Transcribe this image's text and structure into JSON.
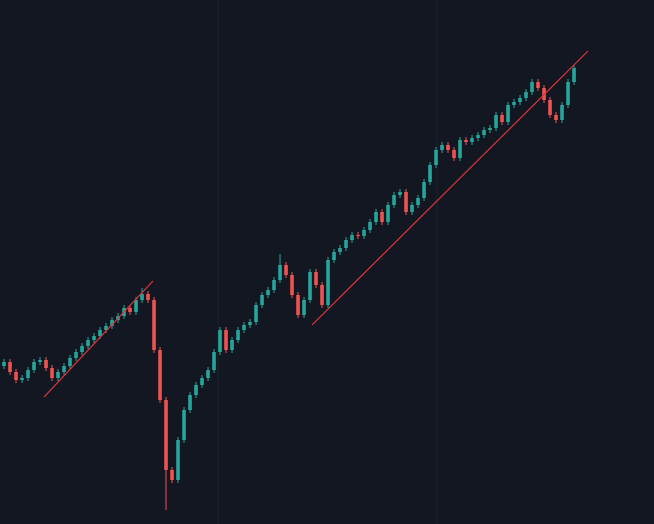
{
  "chart_data": {
    "type": "candlestick",
    "up_color": "#26a69a",
    "down_color": "#ef5350",
    "trendline_color": "#e0343c",
    "xlim": [
      -0.67,
      108.33
    ],
    "ylim": [
      0,
      524
    ],
    "x": [
      0,
      1,
      2,
      3,
      4,
      5,
      6,
      7,
      8,
      9,
      10,
      11,
      12,
      13,
      14,
      15,
      16,
      17,
      18,
      19,
      20,
      21,
      22,
      23,
      24,
      25,
      26,
      27,
      28,
      29,
      30,
      31,
      32,
      33,
      34,
      35,
      36,
      37,
      38,
      39,
      40,
      41,
      42,
      43,
      44,
      45,
      46,
      47,
      48,
      49,
      50,
      51,
      52,
      53,
      54,
      55,
      56,
      57,
      58,
      59,
      60,
      61,
      62,
      63,
      64,
      65,
      66,
      67,
      68,
      69,
      70,
      71,
      72,
      73,
      74,
      75,
      76,
      77,
      78,
      79,
      80,
      81,
      82,
      83,
      84,
      85,
      86,
      87,
      88,
      89,
      90,
      91,
      92,
      93,
      94,
      95
    ],
    "open": [
      158,
      162,
      152,
      144,
      146,
      154,
      162,
      164,
      156,
      146,
      152,
      158,
      166,
      172,
      178,
      184,
      188,
      194,
      198,
      204,
      208,
      216,
      212,
      224,
      230,
      224,
      174,
      124,
      54,
      44,
      84,
      114,
      129,
      139,
      146,
      154,
      172,
      194,
      174,
      184,
      194,
      199,
      202,
      219,
      229,
      234,
      244,
      259,
      249,
      229,
      209,
      224,
      252,
      239,
      219,
      264,
      272,
      276,
      284,
      289,
      288,
      294,
      302,
      312,
      302,
      319,
      329,
      332,
      312,
      319,
      326,
      342,
      359,
      374,
      379,
      374,
      366,
      384,
      382,
      386,
      389,
      394,
      396,
      409,
      402,
      419,
      422,
      426,
      432,
      442,
      436,
      424,
      409,
      404,
      419,
      442
    ],
    "high": [
      165,
      165,
      155,
      149,
      157,
      165,
      167,
      167,
      159,
      155,
      161,
      169,
      175,
      181,
      187,
      191,
      197,
      201,
      207,
      211,
      219,
      219,
      227,
      236,
      233,
      227,
      177,
      127,
      57,
      87,
      117,
      132,
      142,
      149,
      157,
      175,
      197,
      197,
      187,
      197,
      202,
      205,
      222,
      232,
      237,
      247,
      270,
      262,
      252,
      232,
      227,
      255,
      255,
      242,
      267,
      275,
      279,
      287,
      292,
      292,
      297,
      305,
      315,
      315,
      322,
      332,
      335,
      335,
      322,
      329,
      345,
      362,
      377,
      382,
      382,
      377,
      387,
      387,
      389,
      392,
      397,
      399,
      412,
      412,
      422,
      425,
      429,
      435,
      445,
      445,
      439,
      427,
      412,
      422,
      445,
      459
    ],
    "low": [
      155,
      149,
      141,
      141,
      143,
      151,
      159,
      153,
      143,
      143,
      149,
      155,
      163,
      169,
      175,
      181,
      185,
      191,
      195,
      201,
      205,
      209,
      209,
      221,
      221,
      171,
      121,
      14,
      41,
      41,
      81,
      111,
      126,
      136,
      143,
      151,
      169,
      171,
      171,
      181,
      191,
      196,
      199,
      216,
      226,
      231,
      241,
      246,
      226,
      206,
      206,
      221,
      236,
      216,
      216,
      261,
      269,
      273,
      281,
      285,
      285,
      291,
      299,
      299,
      299,
      316,
      326,
      309,
      309,
      316,
      323,
      339,
      356,
      371,
      371,
      363,
      363,
      379,
      379,
      383,
      386,
      391,
      393,
      399,
      399,
      416,
      419,
      423,
      429,
      433,
      421,
      406,
      401,
      401,
      416,
      439
    ],
    "close": [
      162,
      152,
      144,
      146,
      154,
      162,
      164,
      156,
      146,
      152,
      158,
      166,
      172,
      178,
      184,
      188,
      194,
      198,
      204,
      208,
      216,
      212,
      224,
      230,
      224,
      174,
      124,
      54,
      44,
      84,
      114,
      129,
      139,
      146,
      154,
      172,
      194,
      174,
      184,
      194,
      199,
      202,
      219,
      229,
      234,
      244,
      259,
      249,
      229,
      209,
      224,
      252,
      239,
      219,
      264,
      272,
      276,
      284,
      289,
      288,
      294,
      302,
      312,
      302,
      319,
      329,
      332,
      312,
      319,
      326,
      342,
      359,
      374,
      379,
      374,
      366,
      384,
      382,
      386,
      389,
      394,
      396,
      409,
      402,
      419,
      422,
      426,
      432,
      442,
      436,
      424,
      409,
      404,
      419,
      442,
      456
    ],
    "trendlines": [
      {
        "x": [
          6.67,
          24.83
        ],
        "y": [
          127,
          243
        ]
      },
      {
        "x": [
          51.33,
          97.33
        ],
        "y": [
          199,
          473
        ]
      }
    ]
  }
}
